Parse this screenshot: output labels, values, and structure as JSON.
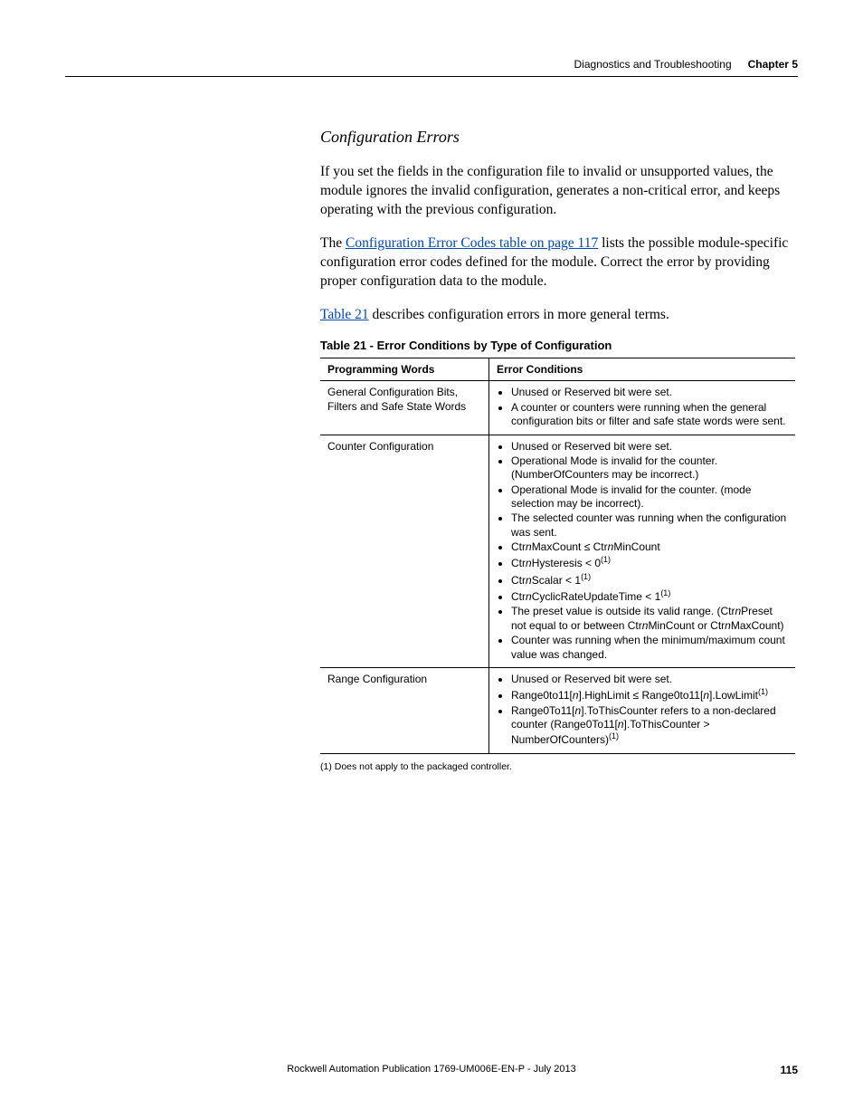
{
  "header": {
    "title": "Diagnostics and Troubleshooting",
    "chapter": "Chapter 5"
  },
  "section_heading": "Configuration Errors",
  "paragraphs": {
    "p1": "If you set the fields in the configuration file to invalid or unsupported values, the module ignores the invalid configuration, generates a non-critical error, and keeps operating with the previous configuration.",
    "p2_pre": "The ",
    "p2_link": "Configuration Error Codes table on page 117",
    "p2_post": " lists the possible module-specific configuration error codes defined for the module. Correct the error by providing proper configuration data to the module.",
    "p3_link": "Table 21",
    "p3_post": " describes configuration errors in more general terms."
  },
  "table": {
    "caption": "Table 21 - Error Conditions by Type of Configuration",
    "col1": "Programming Words",
    "col2": "Error Conditions",
    "rows": [
      {
        "label": "General Configuration Bits, Filters and Safe State Words",
        "items_html": [
          "Unused or Reserved bit were set.",
          "A counter or counters were running when the general configuration bits or filter and safe state words were sent."
        ]
      },
      {
        "label": "Counter Configuration",
        "items_html": [
          "Unused or Reserved bit were set.",
          "Operational Mode is invalid for the counter. (NumberOfCounters may be incorrect.)",
          "Operational Mode is invalid for the counter. (mode selection may be incorrect).",
          "The selected counter was running when the configuration was sent.",
          "Ctr<span class='ital'>n</span>MaxCount ≤ Ctr<span class='ital'>n</span>MinCount",
          "Ctr<span class='ital'>n</span>Hysteresis &lt; 0<sup>(1)</sup>",
          "Ctr<span class='ital'>n</span>Scalar &lt; 1<sup>(1)</sup>",
          "Ctr<span class='ital'>n</span>CyclicRateUpdateTime &lt; 1<sup>(1)</sup>",
          "The preset value is outside its valid range. (Ctr<span class='ital'>n</span>Preset not equal to or between Ctr<span class='ital'>n</span>MinCount or Ctr<span class='ital'>n</span>MaxCount)",
          "Counter was running when the minimum/maximum count value was changed."
        ]
      },
      {
        "label": "Range Configuration",
        "items_html": [
          "Unused or Reserved bit were set.",
          "Range0to11[<span class='ital'>n</span>].HighLimit ≤ Range0to11[<span class='ital'>n</span>].LowLimit<sup>(1)</sup>",
          "Range0To11[<span class='ital'>n</span>].ToThisCounter refers to a non-declared counter (Range0To11[<span class='ital'>n</span>].ToThisCounter &gt; NumberOfCounters)<sup>(1)</sup>"
        ]
      }
    ]
  },
  "footnote": "(1)   Does not apply to the packaged controller.",
  "footer": {
    "publication": "Rockwell Automation Publication 1769-UM006E-EN-P - July 2013",
    "page": "115"
  }
}
